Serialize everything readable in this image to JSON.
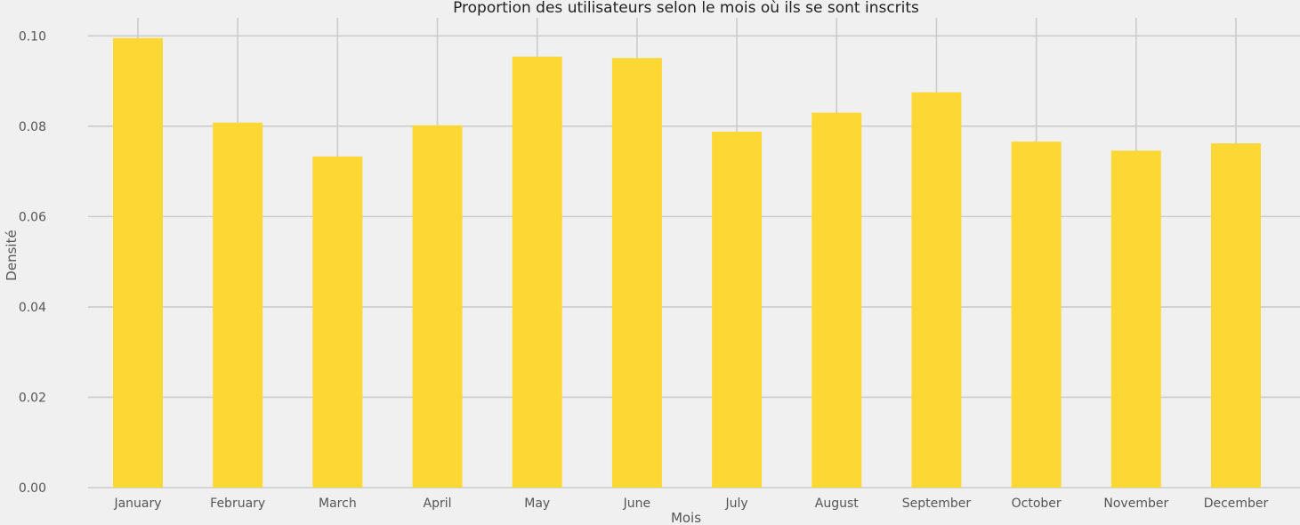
{
  "chart_data": {
    "type": "bar",
    "title": "Proportion des utilisateurs selon le mois où ils se sont inscrits",
    "xlabel": "Mois",
    "ylabel": "Densité",
    "categories": [
      "January",
      "February",
      "March",
      "April",
      "May",
      "June",
      "July",
      "August",
      "September",
      "October",
      "November",
      "December"
    ],
    "values": [
      0.0995,
      0.0808,
      0.0733,
      0.0802,
      0.0954,
      0.0951,
      0.0788,
      0.083,
      0.0875,
      0.0766,
      0.0746,
      0.0762
    ],
    "ylim": [
      0,
      0.104
    ],
    "yticks": [
      0.0,
      0.02,
      0.04,
      0.06,
      0.08,
      0.1
    ],
    "ytick_labels": [
      "0.00",
      "0.02",
      "0.04",
      "0.06",
      "0.08",
      "0.10"
    ],
    "grid": true,
    "legend": "none",
    "bar_color": "#fdd835",
    "background_color": "#f0f0f0",
    "grid_color": "#cbcbcb"
  }
}
